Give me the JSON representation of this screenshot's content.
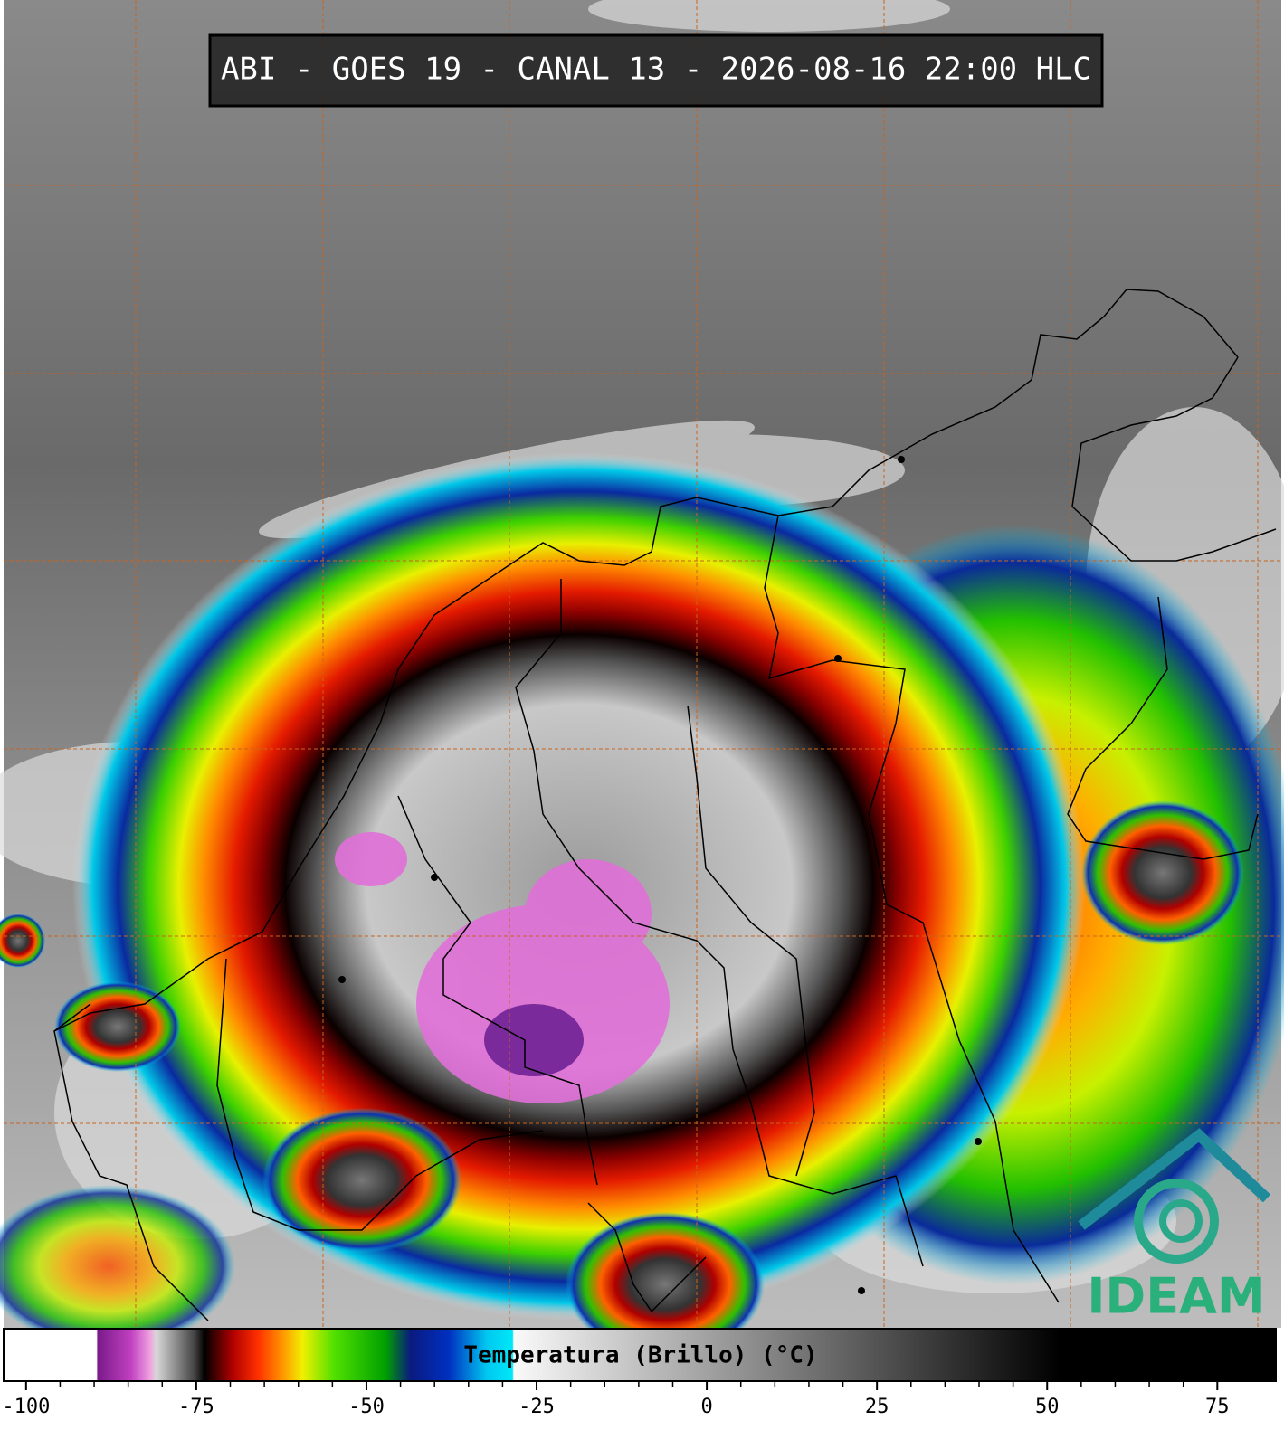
{
  "map": {
    "title": "ABI - GOES 19 - CANAL 13 - 2026-08-16 22:00 HLC",
    "logo": "IDEAM"
  },
  "colorbar": {
    "label": "Temperatura (Brillo) (°C)",
    "range": [
      -103.3,
      83.6
    ],
    "ticks": [
      -100,
      -75,
      -50,
      -25,
      0,
      25,
      50,
      75
    ]
  }
}
